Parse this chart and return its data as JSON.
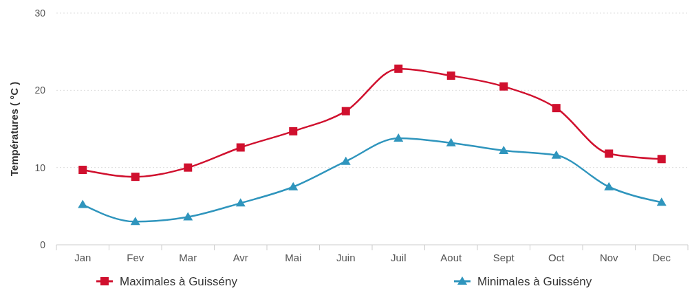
{
  "chart_data": {
    "type": "line",
    "ylabel": "Températures ( °C )",
    "categories": [
      "Jan",
      "Fev",
      "Mar",
      "Avr",
      "Mai",
      "Juin",
      "Juil",
      "Aout",
      "Sept",
      "Oct",
      "Nov",
      "Dec"
    ],
    "series": [
      {
        "name": "Maximales à Guissény",
        "color": "#d0102e",
        "marker": "square",
        "values": [
          9.7,
          8.8,
          10.0,
          12.6,
          14.7,
          17.3,
          22.8,
          21.9,
          20.5,
          17.7,
          11.8,
          11.1
        ]
      },
      {
        "name": "Minimales à Guissény",
        "color": "#2f95bd",
        "marker": "triangle",
        "values": [
          5.2,
          3.0,
          3.6,
          5.4,
          7.5,
          10.8,
          13.8,
          13.2,
          12.2,
          11.6,
          7.5,
          5.5
        ]
      }
    ],
    "ylim": [
      0,
      30
    ],
    "yticks": [
      0,
      10,
      20,
      30
    ],
    "grid": "y",
    "legend": "bottom"
  }
}
